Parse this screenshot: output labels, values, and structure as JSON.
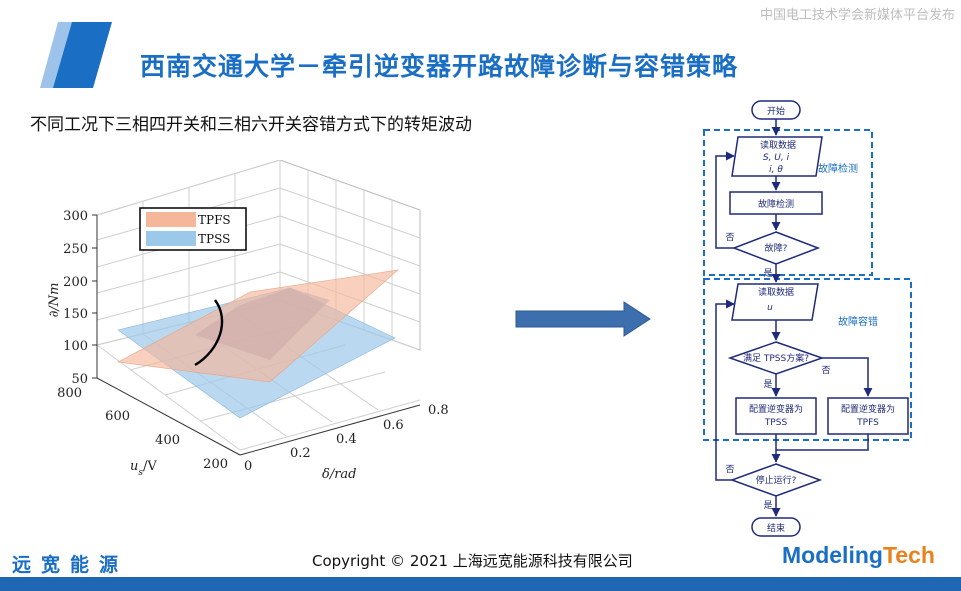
{
  "watermark": "中国电工技术学会新媒体平台发布",
  "header": {
    "title": "西南交通大学－牵引逆变器开路故障诊断与容错策略"
  },
  "subtitle": "不同工况下三相四开关和三相六开关容错方式下的转矩波动",
  "plot": {
    "legend": [
      "TPFS",
      "TPSS"
    ],
    "z_label": "∂/Nm",
    "z_ticks": [
      "300",
      "250",
      "200",
      "150",
      "100",
      "50"
    ],
    "us_label": "u",
    "us_sub": "s",
    "us_unit": "/V",
    "us_ticks": [
      "800",
      "600",
      "400",
      "200"
    ],
    "delta_label": "δ/rad",
    "delta_ticks": [
      "0",
      "0.2",
      "0.4",
      "0.6",
      "0.8"
    ],
    "colors": {
      "tpfs": "#f4b79a",
      "tpss": "#9cc8ea"
    }
  },
  "flowchart": {
    "start": "开始",
    "read1": "读取数据",
    "read1_vars_a": "S",
    "read1_vars_b": "U",
    "read1_vars_c": "i",
    "read1_vars_d": "θ",
    "detect_region": "故障检测",
    "detect_box": "故障检测",
    "fault_q": "故障?",
    "no1": "否",
    "yes1": "是",
    "read2": "读取数据",
    "read2_vars": "u",
    "tolerant_region": "故障容错",
    "tpss_q": "满足 TPSS方案?",
    "no2": "否",
    "yes2": "是",
    "cfg_tpss": "配置逆变器为",
    "cfg_tpss_name": "TPSS",
    "cfg_tpfs": "配置逆变器为",
    "cfg_tpfs_name": "TPFS",
    "stop_q": "停止运行?",
    "no3": "否",
    "yes3": "是",
    "end": "结束"
  },
  "footer": {
    "org": "远宽能源",
    "copyright": "Copyright © 2021 上海远宽能源科技有限公司",
    "brand_a": "Modeling",
    "brand_b": "Tech"
  }
}
